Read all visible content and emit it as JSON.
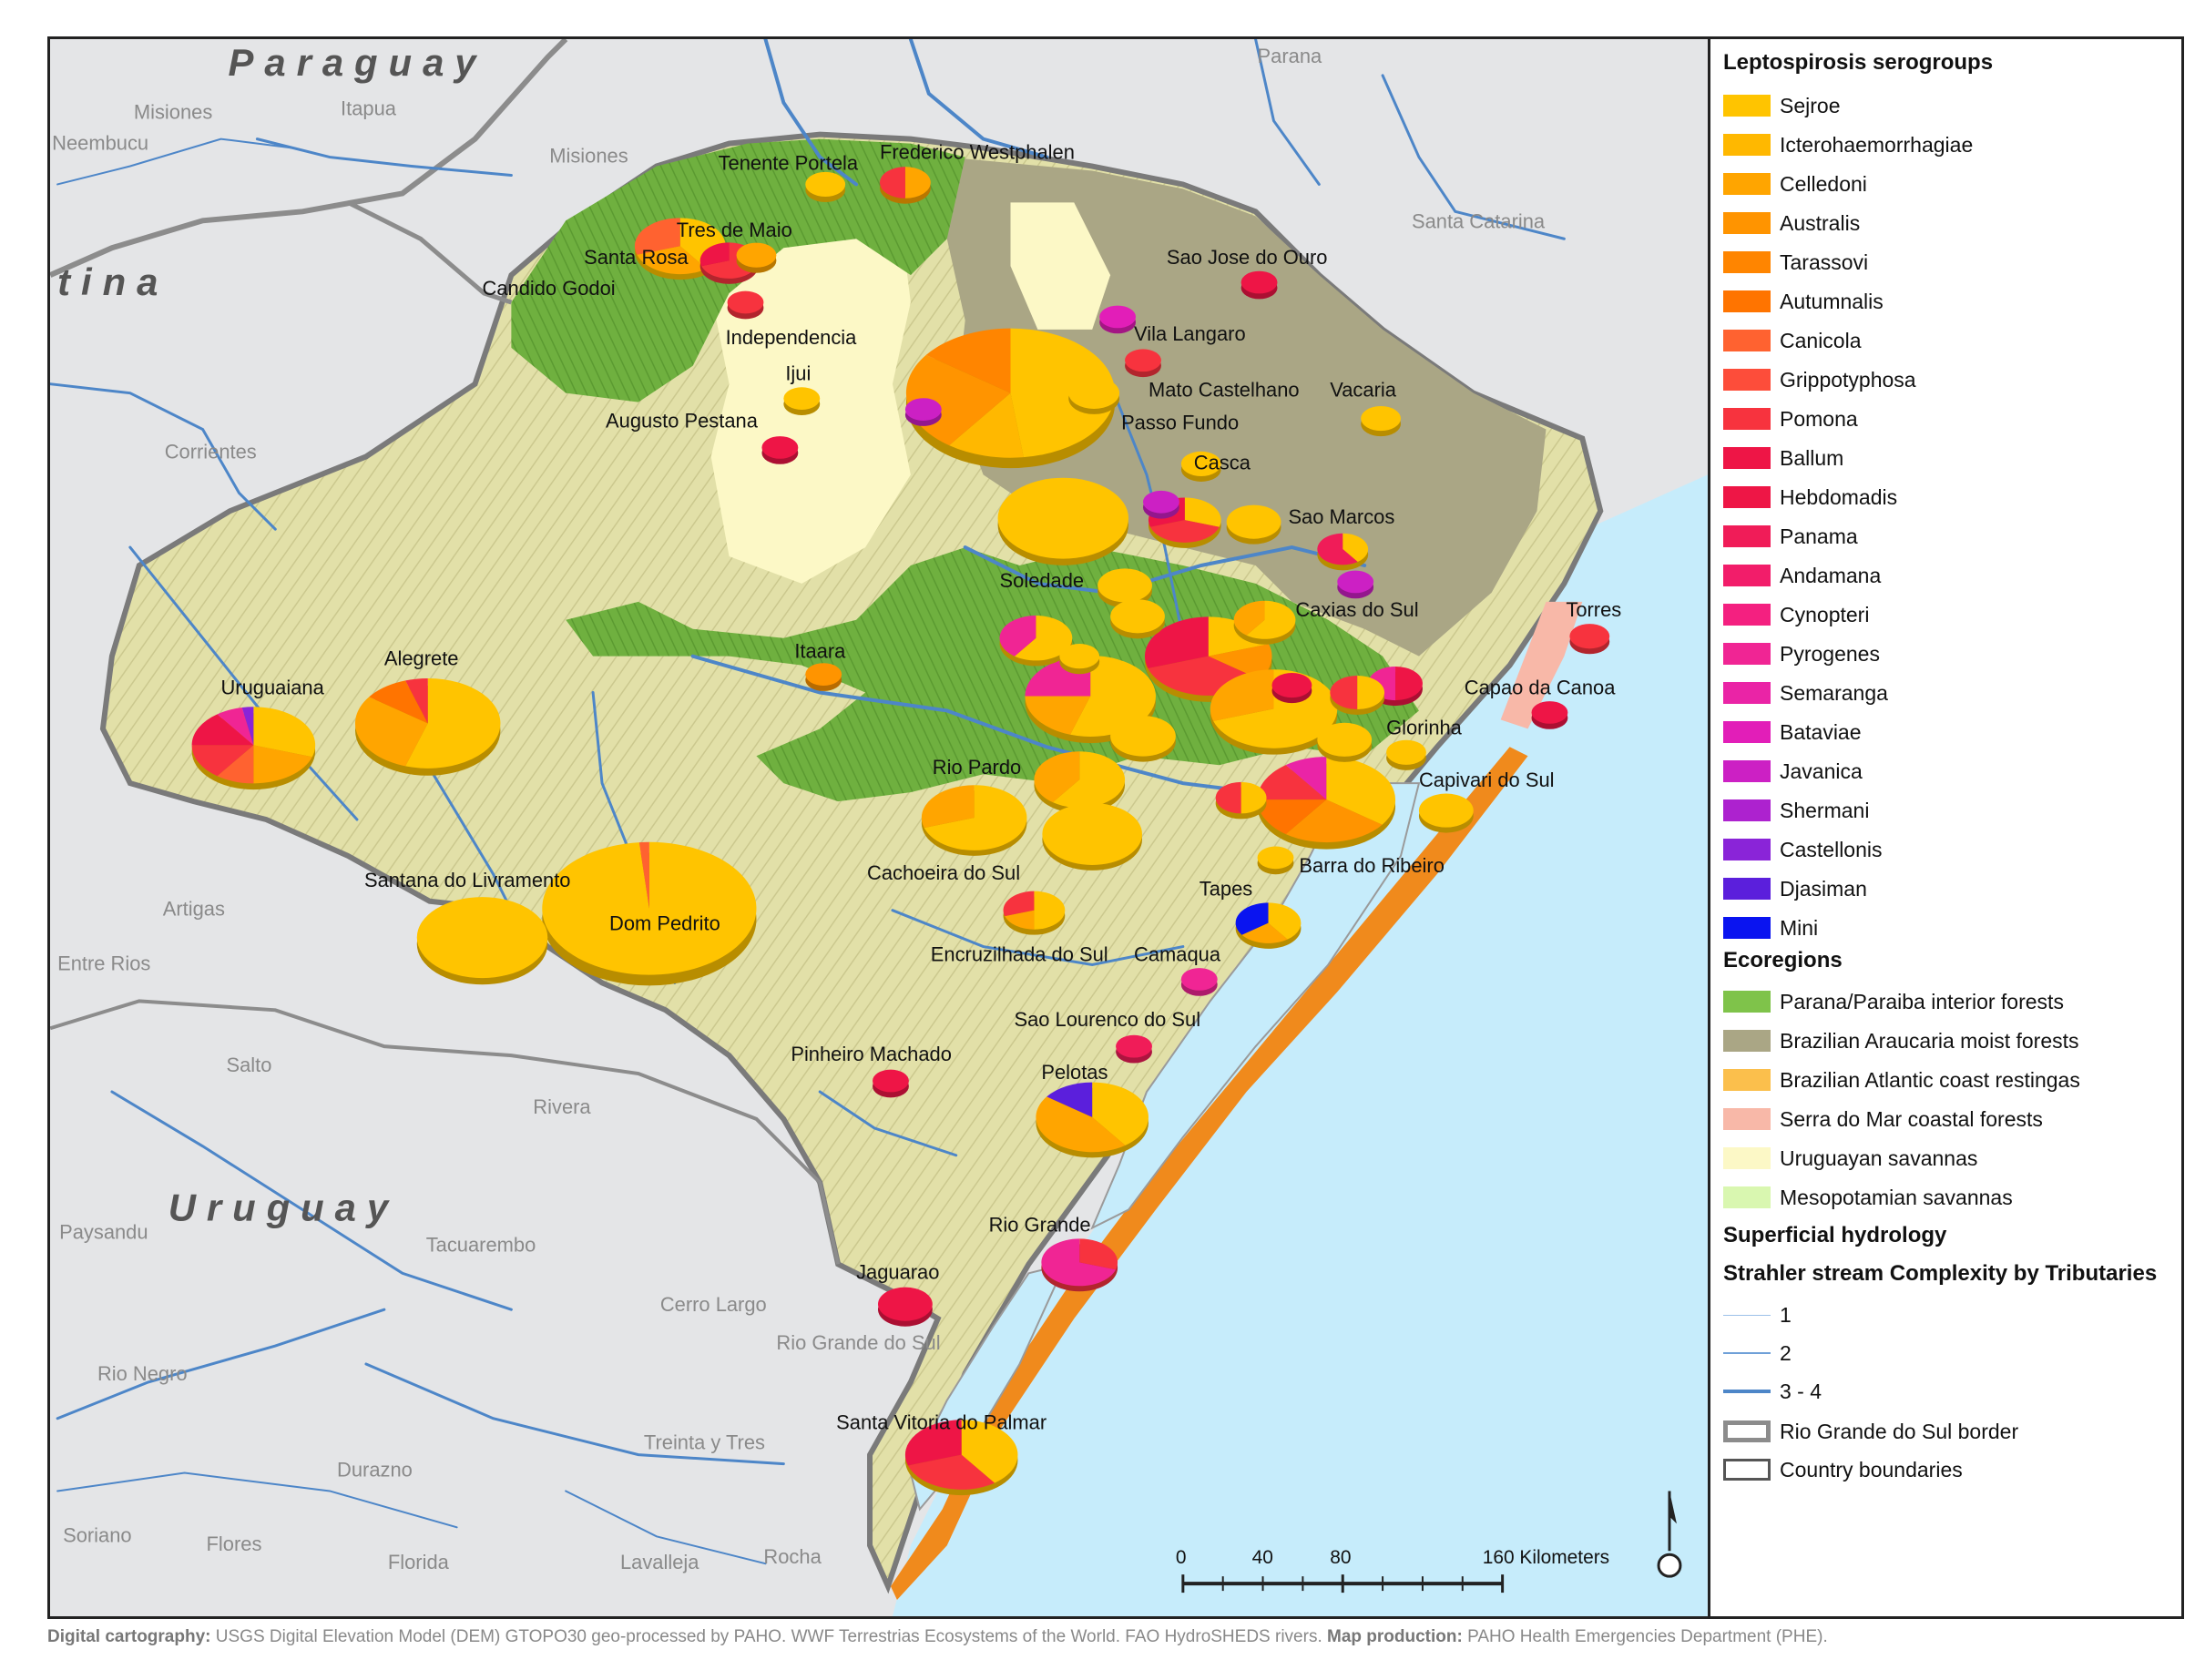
{
  "countries": {
    "paraguay": "Paraguay",
    "argentina_fragment": "tina",
    "uruguay": "Uruguay"
  },
  "regions": {
    "parana": "Parana",
    "misiones_ar": "Misiones",
    "neembucu": "Neembucu",
    "itapua": "Itapua",
    "misiones_py": "Misiones",
    "santa_catarina": "Santa Catarina",
    "corrientes": "Corrientes",
    "artigas": "Artigas",
    "entre_rios": "Entre Rios",
    "salto": "Salto",
    "rivera": "Rivera",
    "paysandu": "Paysandu",
    "tacuarembo": "Tacuarembo",
    "cerro_largo": "Cerro Largo",
    "rio_grande_do_sul": "Rio Grande do Sul",
    "rio_negro": "Rio Negro",
    "treinta_y_tres": "Treinta y Tres",
    "durazno": "Durazno",
    "soriano": "Soriano",
    "flores": "Flores",
    "florida": "Florida",
    "lavalleja": "Lavalleja",
    "rocha": "Rocha"
  },
  "cities": {
    "tenente_portela": "Tenente Portela",
    "frederico_westphalen": "Frederico Westphalen",
    "tres_de_maio": "Tres de Maio",
    "santa_rosa": "Santa Rosa",
    "candido_godoi": "Candido Godoi",
    "independencia": "Independencia",
    "ijui": "Ijui",
    "augusto_pestana": "Augusto Pestana",
    "sao_jose_do_ouro": "Sao Jose do Ouro",
    "vila_langaro": "Vila Langaro",
    "mato_castelhano": "Mato Castelhano",
    "vacaria": "Vacaria",
    "passo_fundo": "Passo Fundo",
    "casca": "Casca",
    "sao_marcos": "Sao Marcos",
    "soledade": "Soledade",
    "caxias_do_sul": "Caxias do Sul",
    "torres": "Torres",
    "itaara": "Itaara",
    "alegrete": "Alegrete",
    "uruguaiana": "Uruguaiana",
    "capao_da_canoa": "Capao da Canoa",
    "gloria": "Glorinha",
    "rio_pardo": "Rio Pardo",
    "capivari_do_sul": "Capivari do Sul",
    "santana": "Santana do Livramento",
    "cachoeira": "Cachoeira do Sul",
    "barra_do_ribeiro": "Barra do Ribeiro",
    "tapes": "Tapes",
    "dom_pedrito": "Dom Pedrito",
    "encruzilhada": "Encruzilhada do Sul",
    "camaqua": "Camaqua",
    "sao_lourenco": "Sao Lourenco do Sul",
    "pinheiro_machado": "Pinheiro Machado",
    "pelotas": "Pelotas",
    "rio_grande": "Rio Grande",
    "jaguarao": "Jaguarao",
    "santa_vitoria": "Santa Vitoria do Palmar"
  },
  "colors": {
    "sejroe": "#ffc400",
    "icterohaemorrhagiae": "#ffb800",
    "celledoni": "#ffa500",
    "australis": "#ff9400",
    "tarassovi": "#ff8500",
    "autumnalis": "#ff7400",
    "canicola": "#ff6230",
    "grippotyphosa": "#fd4d3a",
    "pomona": "#f7333e",
    "ballum": "#ee1546",
    "hebdomadis": "#ee1646",
    "panama": "#f01c58",
    "andamana": "#f21d6a",
    "cynopteri": "#f42080",
    "pyrogenes": "#f02594",
    "semaranga": "#ea24a6",
    "bataviae": "#e21eb8",
    "javanica": "#cc20c4",
    "shermani": "#ad22cf",
    "castellonis": "#8a24d8",
    "djasiman": "#5b1fdc",
    "mini": "#0a14f0",
    "parana_forest": "#7fc34a",
    "araucaria": "#aaa685",
    "restingas": "#fbbf4c",
    "serra_do_mar": "#f8b8a8",
    "uruguayan_savanna": "#fcf8c6",
    "mesopotamian": "#d9f7b0",
    "ocean": "#c6ecfb",
    "river": "#4d86c8"
  },
  "legend": {
    "serogroups_title": "Leptospirosis serogroups",
    "serogroups": [
      {
        "label": "Sejroe",
        "color": "#ffc400"
      },
      {
        "label": "Icterohaemorrhagiae",
        "color": "#ffb800"
      },
      {
        "label": "Celledoni",
        "color": "#ffa500"
      },
      {
        "label": "Australis",
        "color": "#ff9400"
      },
      {
        "label": "Tarassovi",
        "color": "#ff8500"
      },
      {
        "label": "Autumnalis",
        "color": "#ff7400"
      },
      {
        "label": "Canicola",
        "color": "#ff6230"
      },
      {
        "label": "Grippotyphosa",
        "color": "#fd4d3a"
      },
      {
        "label": "Pomona",
        "color": "#f7333e"
      },
      {
        "label": "Ballum",
        "color": "#ee1546"
      },
      {
        "label": "Hebdomadis",
        "color": "#ee1646"
      },
      {
        "label": "Panama",
        "color": "#f01c58"
      },
      {
        "label": "Andamana",
        "color": "#f21d6a"
      },
      {
        "label": "Cynopteri",
        "color": "#f42080"
      },
      {
        "label": "Pyrogenes",
        "color": "#f02594"
      },
      {
        "label": "Semaranga",
        "color": "#ea24a6"
      },
      {
        "label": "Bataviae",
        "color": "#e21eb8"
      },
      {
        "label": "Javanica",
        "color": "#cc20c4"
      },
      {
        "label": "Shermani",
        "color": "#ad22cf"
      },
      {
        "label": "Castellonis",
        "color": "#8a24d8"
      },
      {
        "label": "Djasiman",
        "color": "#5b1fdc"
      },
      {
        "label": "Mini",
        "color": "#0a14f0"
      }
    ],
    "ecoregions_title": "Ecoregions",
    "ecoregions": [
      {
        "label": "Parana/Paraiba interior forests",
        "color": "#7fc34a"
      },
      {
        "label": "Brazilian Araucaria moist forests",
        "color": "#aaa685"
      },
      {
        "label": "Brazilian Atlantic coast restingas",
        "color": "#fbbf4c"
      },
      {
        "label": "Serra do Mar coastal forests",
        "color": "#f8b8a8"
      },
      {
        "label": "Uruguayan savannas",
        "color": "#fcf8c6"
      },
      {
        "label": "Mesopotamian savannas",
        "color": "#d9f7b0"
      }
    ],
    "hydrology_title": "Superficial hydrology",
    "strahler_title": "Strahler stream Complexity by Tributaries",
    "strahler": [
      {
        "label": "1"
      },
      {
        "label": "2"
      },
      {
        "label": "3 - 4"
      }
    ],
    "borders": [
      {
        "label": "Rio Grande do Sul border"
      },
      {
        "label": "Country boundaries"
      }
    ]
  },
  "scale": {
    "t0": "0",
    "t40": "40",
    "t80": "80",
    "t160": "160 Kilometers"
  },
  "credit": {
    "label1": "Digital cartography:",
    "text1": "USGS Digital Elevation Model (DEM) GTOPO30 geo-processed by PAHO. WWF Terrestrias Ecosystems of the World. FAO HydroSHEDS rivers.",
    "label2": "Map production:",
    "text2": "PAHO Health Emergencies Department (PHE)."
  }
}
